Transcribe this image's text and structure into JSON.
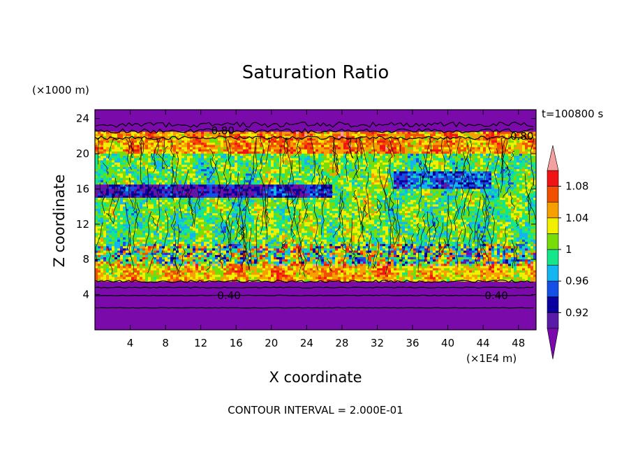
{
  "chart_data": {
    "type": "heatmap",
    "title": "Saturation Ratio",
    "xlabel": "X coordinate",
    "ylabel": "Z coordinate",
    "x_unit": "(×1E4 m)",
    "y_unit": "(×1000 m)",
    "time_label": "t=100800 s",
    "footer": "CONTOUR INTERVAL = 2.000E-01",
    "xlim": [
      0,
      50
    ],
    "ylim": [
      0,
      25
    ],
    "x_ticks": [
      4,
      8,
      12,
      16,
      20,
      24,
      28,
      32,
      36,
      40,
      44,
      48
    ],
    "y_ticks": [
      4,
      8,
      12,
      16,
      20,
      24
    ],
    "x_tick_labels": [
      "4",
      "8",
      "12",
      "16",
      "20",
      "24",
      "28",
      "32",
      "36",
      "40",
      "44",
      "48"
    ],
    "y_tick_labels": [
      "4",
      "8",
      "12",
      "16",
      "20",
      "24"
    ],
    "contour_labels": [
      {
        "text": "0.40",
        "x": 15.2,
        "y": 3.9
      },
      {
        "text": "0.40",
        "x": 45.5,
        "y": 3.9
      },
      {
        "text": "0.80",
        "x": 14.5,
        "y": 22.6
      },
      {
        "text": "0.80",
        "x": 48.4,
        "y": 22.0
      }
    ],
    "colorbar": {
      "levels": [
        0.9,
        0.92,
        0.94,
        0.96,
        0.98,
        1.0,
        1.02,
        1.04,
        1.06,
        1.08,
        1.1
      ],
      "tick_values": [
        0.92,
        0.96,
        1.0,
        1.04,
        1.08
      ],
      "tick_labels": [
        "0.92",
        "0.96",
        "1",
        "1.04",
        "1.08"
      ],
      "colors": [
        "#5a1aa8",
        "#0a00a0",
        "#1450e6",
        "#14b4f0",
        "#14e68c",
        "#78dc0a",
        "#f0f000",
        "#f5a000",
        "#f05000",
        "#f01414"
      ],
      "under_color": "#7a0aaa",
      "over_color": "#f5a0a0"
    },
    "regions": [
      {
        "name": "lower-dry-layer",
        "z_range": [
          0,
          5.5
        ],
        "value": "below 0.90"
      },
      {
        "name": "upper-dry-layer",
        "z_range": [
          22.5,
          25
        ],
        "value": "below 0.90"
      },
      {
        "name": "cloud-layer",
        "z_range": [
          5.5,
          22.5
        ],
        "value": "0.90 to 1.10"
      }
    ]
  }
}
